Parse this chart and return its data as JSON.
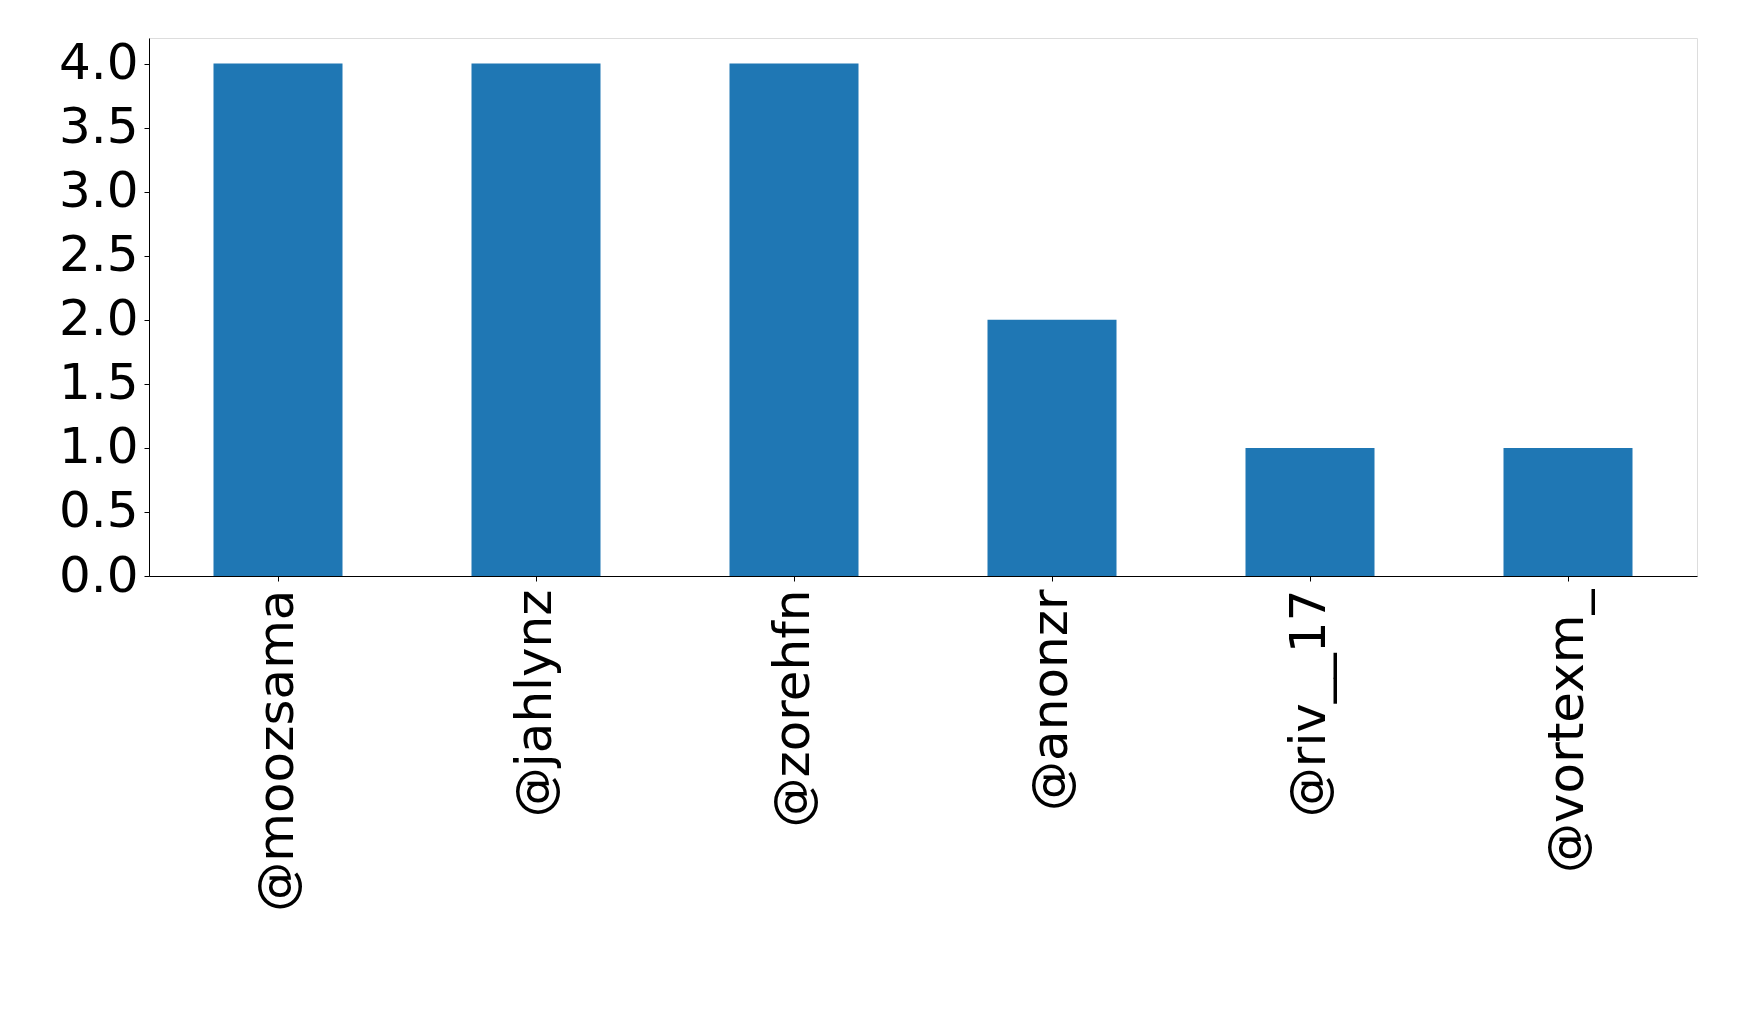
{
  "chart_data": {
    "type": "bar",
    "categories": [
      "@moozsama",
      "@jahlynz",
      "@zorehfn",
      "@anonzr",
      "@riv__17",
      "@vortexm_"
    ],
    "values": [
      4,
      4,
      4,
      2,
      1,
      1
    ],
    "color": "#1f77b4",
    "ylim": [
      0,
      4.2
    ],
    "yticks": [
      {
        "value": 0,
        "label": "0.0"
      },
      0.5,
      {
        "value": 1,
        "label": "1.0"
      },
      1.5,
      {
        "value": 2,
        "label": "2.0"
      },
      2.5,
      {
        "value": 3,
        "label": "3.0"
      },
      3.5,
      {
        "value": 4,
        "label": "4.0"
      }
    ],
    "grid": false
  }
}
